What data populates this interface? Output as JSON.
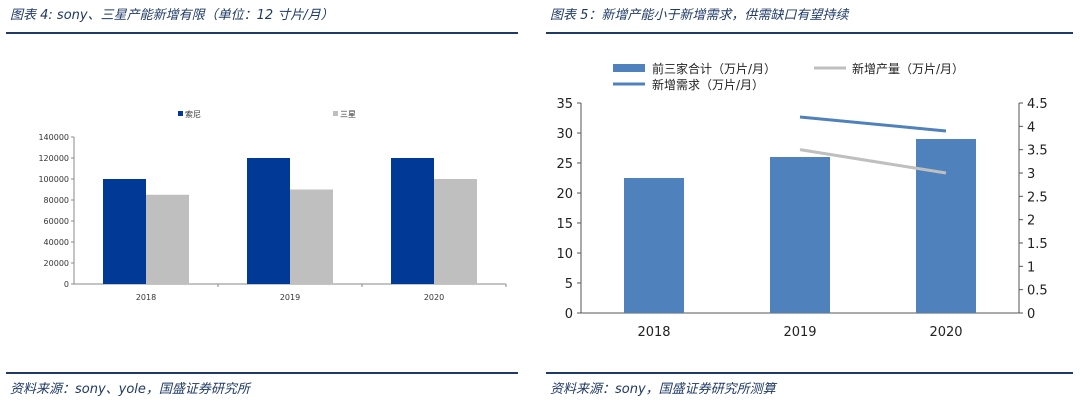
{
  "left": {
    "title": "图表 4: sony、三星产能新增有限（单位：12 寸片/月）",
    "source": "资料来源：sony、yole，国盛证券研究所",
    "chart_data": {
      "type": "bar",
      "categories": [
        "2018",
        "2019",
        "2020"
      ],
      "series": [
        {
          "name": "索尼",
          "values": [
            100000,
            120000,
            120000
          ],
          "color": "#003a96"
        },
        {
          "name": "三星",
          "values": [
            85000,
            90000,
            100000
          ],
          "color": "#bfbfbf"
        }
      ],
      "ylim": [
        0,
        140000
      ],
      "yticks": [
        "0",
        "20000",
        "40000",
        "60000",
        "80000",
        "100000",
        "120000",
        "140000"
      ],
      "grid": false,
      "legend": "top"
    }
  },
  "right": {
    "title": "图表 5：新增产能小于新增需求，供需缺口有望持续",
    "source": "资料来源：sony，国盛证券研究所测算",
    "chart_data": {
      "type": "bar",
      "categories": [
        "2018",
        "2019",
        "2020"
      ],
      "series": [
        {
          "name": "前三家合计（万片/月）",
          "type": "bar",
          "axis": "left",
          "values": [
            22.5,
            26,
            29
          ],
          "color": "#4f81bd"
        },
        {
          "name": "新增产量（万片/月）",
          "type": "line",
          "axis": "right",
          "values": [
            null,
            3.5,
            3.0
          ],
          "color": "#bfbfbf"
        },
        {
          "name": "新增需求（万片/月）",
          "type": "line",
          "axis": "right",
          "values": [
            null,
            4.2,
            3.9
          ],
          "color": "#4f81bd"
        }
      ],
      "ylim_left": [
        0,
        35
      ],
      "yticks_left": [
        "0",
        "5",
        "10",
        "15",
        "20",
        "25",
        "30",
        "35"
      ],
      "ylim_right": [
        0,
        4.5
      ],
      "yticks_right": [
        "0",
        "0.5",
        "1",
        "1.5",
        "2",
        "2.5",
        "3",
        "3.5",
        "4",
        "4.5"
      ],
      "grid": false,
      "legend": "top-left"
    }
  }
}
